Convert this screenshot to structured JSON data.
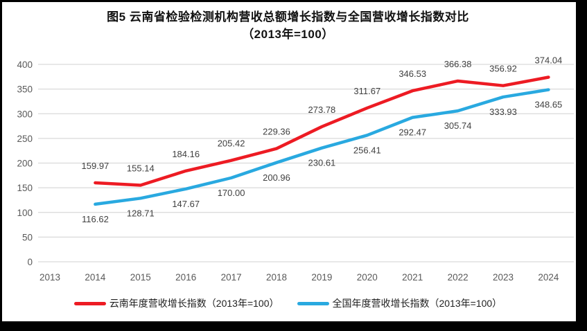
{
  "frame": {
    "border_color": "#000000",
    "background": "#ffffff"
  },
  "title": {
    "line1": "图5  云南省检验检测机构营收总额增长指数与全国营收增长指数对比",
    "line2": "（2013年=100）"
  },
  "chart_data": {
    "type": "line",
    "title": "图5 云南省检验检测机构营收总额增长指数与全国营收增长指数对比（2013年=100）",
    "base_note": "2013年=100",
    "categories": [
      2013,
      2014,
      2015,
      2016,
      2017,
      2018,
      2019,
      2020,
      2021,
      2022,
      2023,
      2024
    ],
    "series": [
      {
        "name": "云南年度营收增长指数（2013年=100）",
        "color": "#ED1B23",
        "start_year": 2014,
        "label_position": "above",
        "values": [
          159.97,
          155.14,
          184.16,
          205.42,
          229.36,
          273.78,
          311.67,
          346.53,
          366.38,
          356.92,
          374.04
        ]
      },
      {
        "name": "全国年度营收增长指数（2013年=100）",
        "color": "#29A9E0",
        "start_year": 2014,
        "label_position": "below",
        "values": [
          116.62,
          128.71,
          147.67,
          170.0,
          200.96,
          230.61,
          256.41,
          292.47,
          305.74,
          333.93,
          348.65
        ]
      }
    ],
    "ylim": [
      0,
      400
    ],
    "ytick_step": 50,
    "yticks": [
      0,
      50,
      100,
      150,
      200,
      250,
      300,
      350,
      400
    ],
    "grid": true,
    "legend_position": "bottom",
    "data_labels_decimals": 2
  },
  "style": {
    "grid_color": "#D9D9D9",
    "tick_text_color": "#595959",
    "data_label_color": "#3F3F3F",
    "title_color": "#111111",
    "legend_text_color": "#1F1F1F"
  }
}
